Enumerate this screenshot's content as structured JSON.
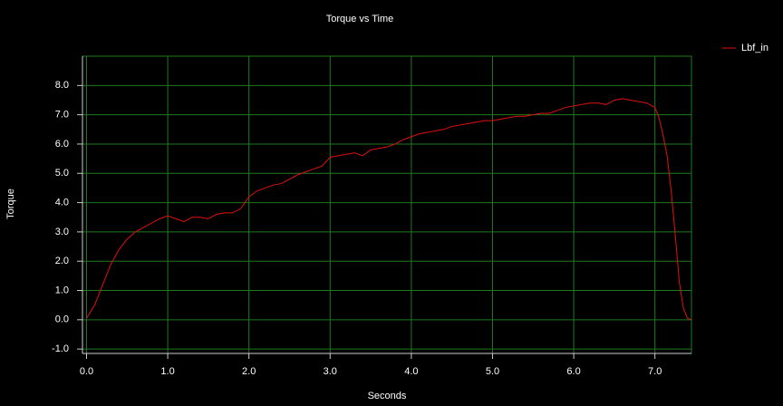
{
  "chart_data": {
    "type": "line",
    "title": "Torque vs Time",
    "x_label": "Seconds",
    "y_label": "Torque",
    "grid": true,
    "legend": "top-right",
    "xlim": [
      -0.05,
      7.45
    ],
    "ylim": [
      -1.15,
      9.0
    ],
    "xticks": [
      {
        "value": 0,
        "label": "0.0"
      },
      {
        "value": 1,
        "label": "1.0"
      },
      {
        "value": 2,
        "label": "2.0"
      },
      {
        "value": 3,
        "label": "3.0"
      },
      {
        "value": 4,
        "label": "4.0"
      },
      {
        "value": 5,
        "label": "5.0"
      },
      {
        "value": 6,
        "label": "6.0"
      },
      {
        "value": 7,
        "label": "7.0"
      }
    ],
    "yticks": [
      {
        "value": -1,
        "label": "-1.0"
      },
      {
        "value": 0,
        "label": "0.0"
      },
      {
        "value": 1,
        "label": "1.0"
      },
      {
        "value": 2,
        "label": "2.0"
      },
      {
        "value": 3,
        "label": "3.0"
      },
      {
        "value": 4,
        "label": "4.0"
      },
      {
        "value": 5,
        "label": "5.0"
      },
      {
        "value": 6,
        "label": "6.0"
      },
      {
        "value": 7,
        "label": "7.0"
      },
      {
        "value": 8,
        "label": "8.0"
      }
    ],
    "x": [
      0.0,
      0.1,
      0.2,
      0.3,
      0.4,
      0.5,
      0.6,
      0.7,
      0.8,
      0.9,
      1.0,
      1.1,
      1.2,
      1.3,
      1.4,
      1.5,
      1.6,
      1.7,
      1.8,
      1.9,
      2.0,
      2.1,
      2.2,
      2.3,
      2.4,
      2.5,
      2.6,
      2.7,
      2.8,
      2.9,
      3.0,
      3.1,
      3.2,
      3.3,
      3.4,
      3.5,
      3.6,
      3.7,
      3.8,
      3.9,
      4.0,
      4.1,
      4.2,
      4.3,
      4.4,
      4.5,
      4.6,
      4.7,
      4.8,
      4.9,
      5.0,
      5.1,
      5.2,
      5.3,
      5.4,
      5.5,
      5.6,
      5.7,
      5.8,
      5.9,
      6.0,
      6.1,
      6.2,
      6.3,
      6.4,
      6.5,
      6.6,
      6.7,
      6.8,
      6.9,
      7.0,
      7.05,
      7.1,
      7.15,
      7.2,
      7.25,
      7.3,
      7.35,
      7.4,
      7.45
    ],
    "series": [
      {
        "name": "Lbf_in",
        "color": "#e01010",
        "values": [
          0.05,
          0.5,
          1.2,
          1.9,
          2.4,
          2.75,
          3.0,
          3.15,
          3.3,
          3.45,
          3.55,
          3.45,
          3.35,
          3.5,
          3.5,
          3.45,
          3.6,
          3.65,
          3.65,
          3.8,
          4.2,
          4.4,
          4.5,
          4.6,
          4.65,
          4.8,
          4.95,
          5.05,
          5.15,
          5.25,
          5.55,
          5.6,
          5.65,
          5.7,
          5.6,
          5.8,
          5.85,
          5.9,
          6.0,
          6.15,
          6.25,
          6.35,
          6.4,
          6.45,
          6.5,
          6.6,
          6.65,
          6.7,
          6.75,
          6.8,
          6.8,
          6.85,
          6.9,
          6.95,
          6.95,
          7.0,
          7.05,
          7.05,
          7.15,
          7.25,
          7.3,
          7.35,
          7.4,
          7.4,
          7.35,
          7.5,
          7.55,
          7.5,
          7.45,
          7.4,
          7.25,
          6.9,
          6.3,
          5.6,
          4.4,
          2.9,
          1.3,
          0.4,
          0.05,
          0.0
        ]
      }
    ]
  }
}
